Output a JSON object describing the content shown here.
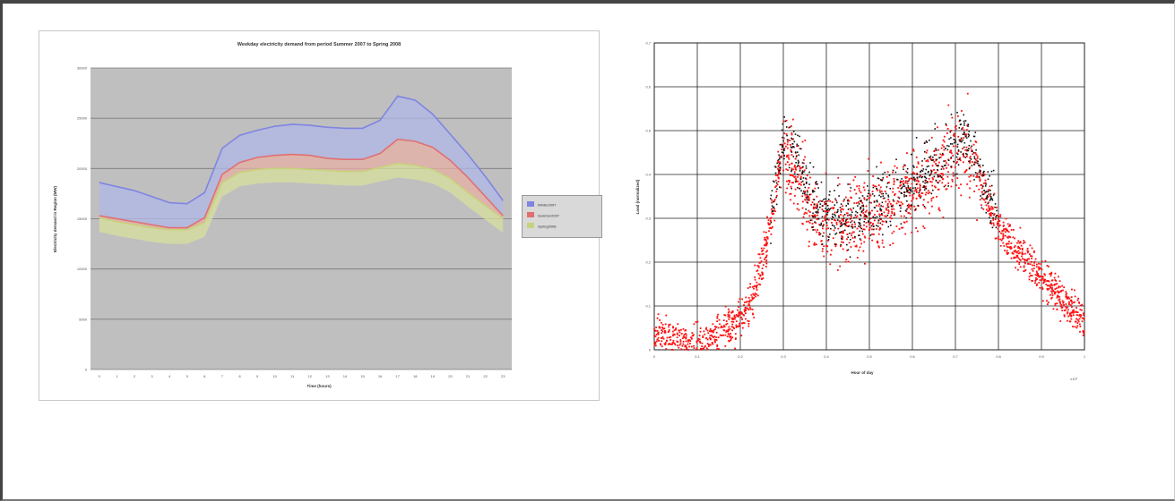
{
  "charts": [
    {
      "id": "weekday-demand",
      "type": "line",
      "title": "Weekday electricity demand from period Summer 2007 to Spring 2008",
      "xlabel": "Time (hours)",
      "ylabel": "Electricity demand in Region (MW)",
      "categories": [
        "0",
        "1",
        "2",
        "3",
        "4",
        "5",
        "6",
        "7",
        "8",
        "9",
        "10",
        "11",
        "12",
        "13",
        "14",
        "15",
        "16",
        "17",
        "18",
        "19",
        "20",
        "21",
        "22",
        "23"
      ],
      "y_ticks": [
        "0",
        "5000",
        "10000",
        "15000",
        "20000",
        "25000",
        "30000"
      ],
      "ylim": [
        0,
        30000
      ],
      "legend_position": "right",
      "series": [
        {
          "name": "Winter2007",
          "color": "#7f85e0",
          "values": [
            18600,
            18200,
            17800,
            17200,
            16600,
            16500,
            17600,
            22000,
            23300,
            23800,
            24200,
            24400,
            24300,
            24100,
            24000,
            24000,
            24800,
            27200,
            26800,
            25400,
            23400,
            21400,
            19200,
            16800
          ]
        },
        {
          "name": "Summer2007",
          "color": "#e07070",
          "values": [
            15300,
            15000,
            14700,
            14400,
            14100,
            14100,
            15100,
            19400,
            20600,
            21100,
            21300,
            21400,
            21300,
            21000,
            20900,
            20900,
            21500,
            22900,
            22700,
            22100,
            20800,
            19100,
            17200,
            15300
          ]
        },
        {
          "name": "Spring2008",
          "color": "#c8d27a",
          "values": [
            15100,
            14700,
            14400,
            14100,
            13900,
            13900,
            14600,
            18600,
            19600,
            19900,
            20000,
            20000,
            19900,
            19800,
            19700,
            19700,
            20100,
            20500,
            20300,
            19900,
            19000,
            17600,
            16300,
            15000
          ]
        }
      ],
      "y_axis_extra": ""
    },
    {
      "id": "scatter-demand",
      "type": "scatter",
      "title": "",
      "xlabel": "Hour of day",
      "ylabel": "Load (normalized)",
      "x_ticks": [
        "0",
        "0.1",
        "0.2",
        "0.3",
        "0.4",
        "0.5",
        "0.6",
        "0.7",
        "0.8",
        "0.9",
        "1"
      ],
      "y_ticks": [
        "0",
        "0.1",
        "0.2",
        "0.3",
        "0.4",
        "0.5",
        "0.6",
        "0.7"
      ],
      "xlim": [
        0,
        1
      ],
      "ylim": [
        0,
        0.7
      ],
      "corner_label": "x10³",
      "grid": true,
      "series": [
        {
          "name": "",
          "color": "#ff1010",
          "density": "high"
        },
        {
          "name": "",
          "color": "#101010",
          "density": "medium"
        }
      ]
    }
  ]
}
